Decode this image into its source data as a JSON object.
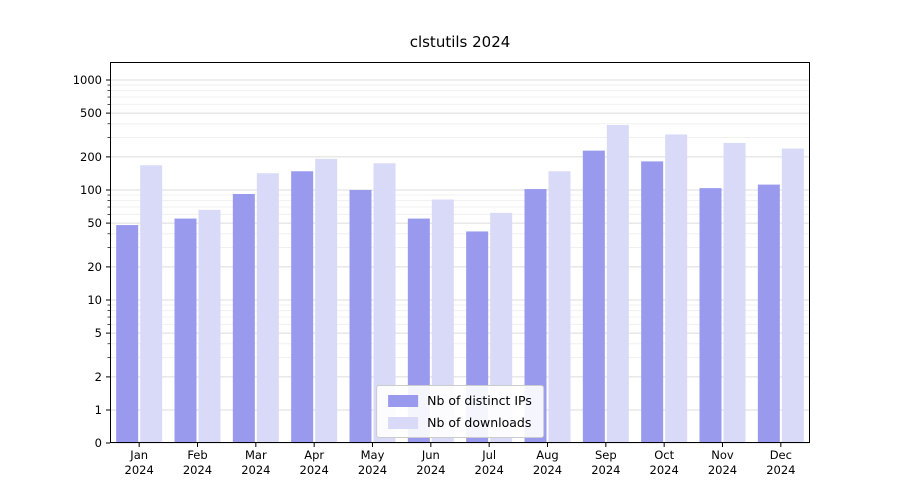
{
  "chart_data": {
    "type": "bar",
    "title": "clstutils 2024",
    "x_year": "2024",
    "categories": [
      "Jan",
      "Feb",
      "Mar",
      "Apr",
      "May",
      "Jun",
      "Jul",
      "Aug",
      "Sep",
      "Oct",
      "Nov",
      "Dec"
    ],
    "series": [
      {
        "name": "Nb of distinct IPs",
        "color": "#9999ee",
        "values": [
          48,
          55,
          92,
          148,
          100,
          55,
          42,
          102,
          228,
          182,
          104,
          112
        ]
      },
      {
        "name": "Nb of downloads",
        "color": "#d9d9f8",
        "values": [
          168,
          66,
          142,
          192,
          175,
          82,
          62,
          148,
          390,
          320,
          268,
          238
        ]
      }
    ],
    "yscale": "symlog",
    "yticks": [
      0,
      1,
      2,
      5,
      10,
      20,
      50,
      100,
      200,
      500,
      1000
    ],
    "ylim": [
      0,
      1200
    ],
    "xlabel": "",
    "ylabel": "",
    "grid": true,
    "legend_position": "lower center",
    "background": "#ffffff",
    "spine_color": "#000000",
    "gridline_color": "#dcdcdc",
    "minor_gridline_color": "#f0f0f0"
  }
}
